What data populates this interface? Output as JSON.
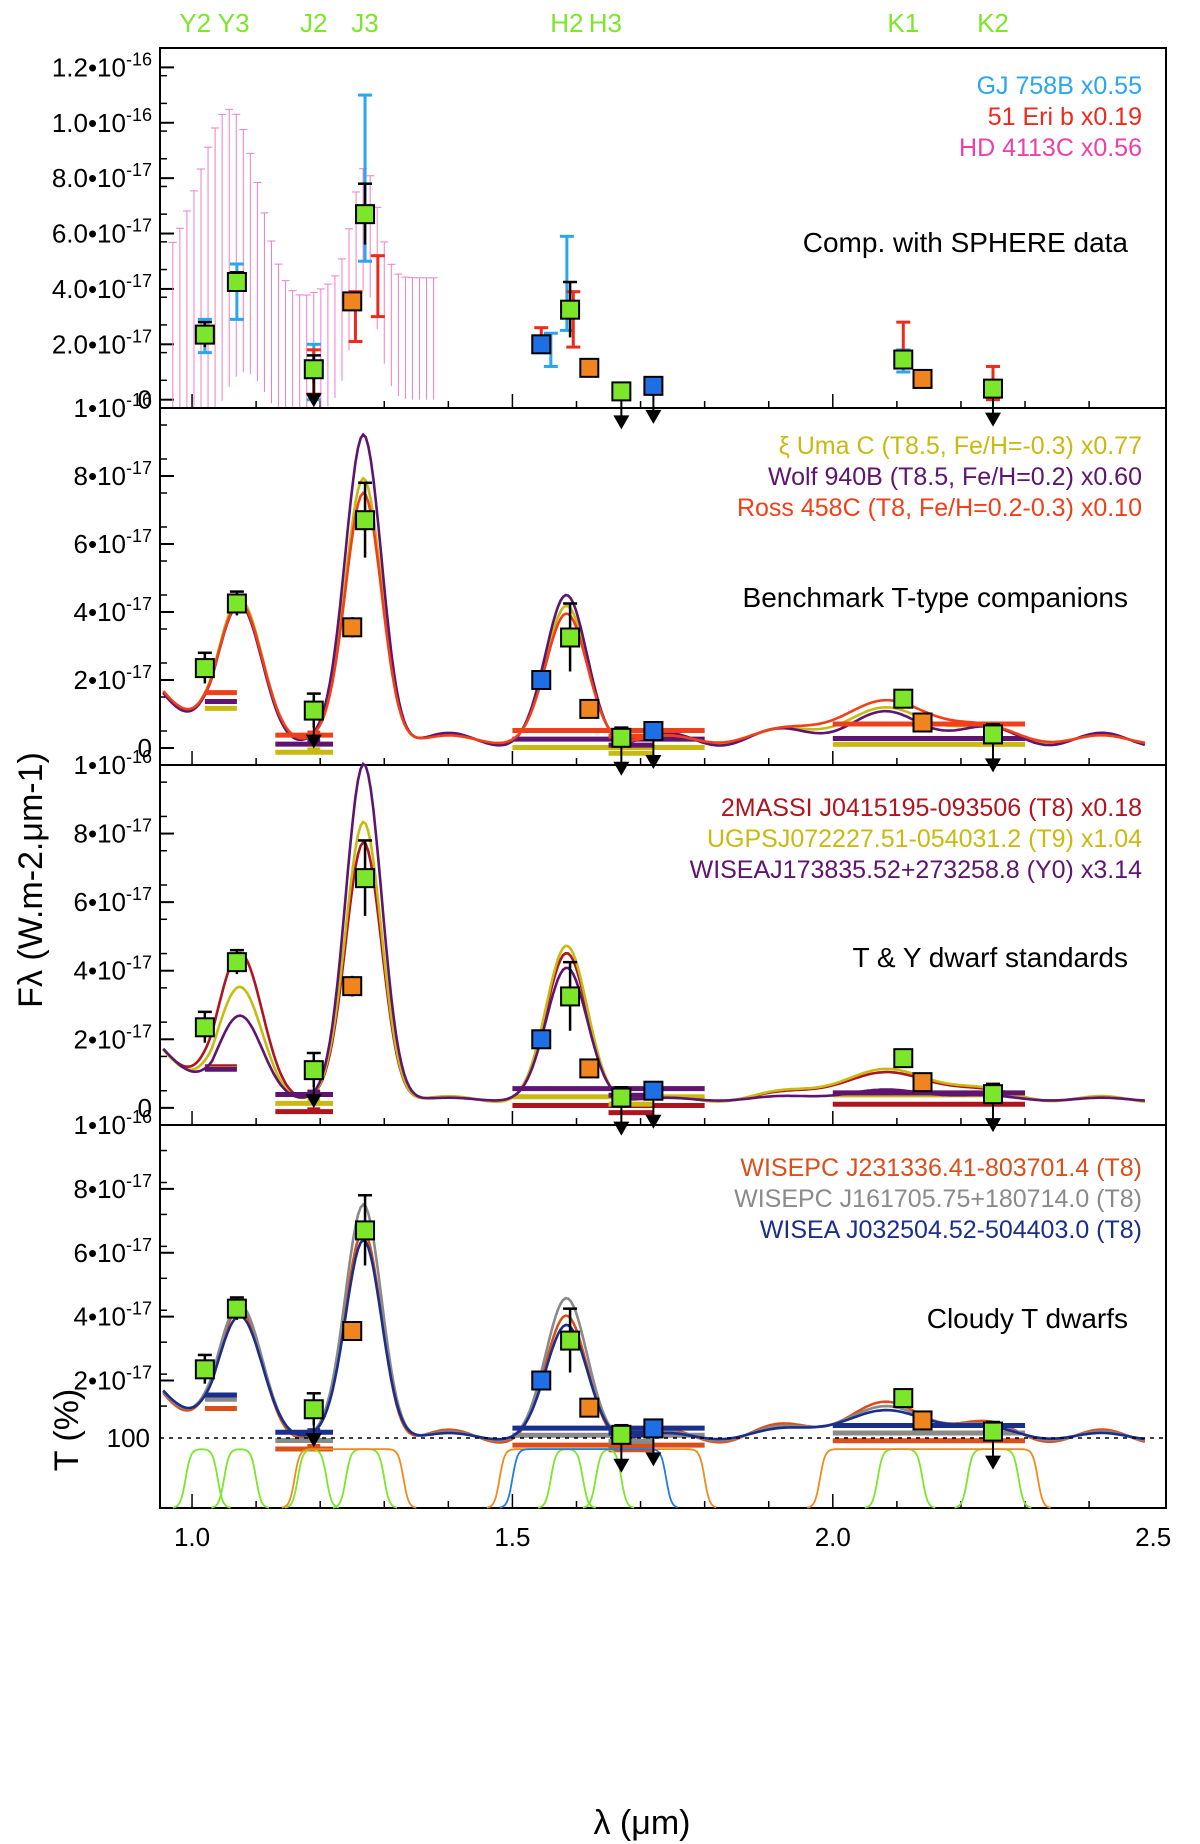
{
  "chart_data": {
    "type": "line",
    "x_axis": {
      "label": "λ (μm)",
      "range": [
        0.95,
        2.52
      ],
      "ticks": [
        "1.0",
        "1.5",
        "2.0",
        "2.5"
      ]
    },
    "y_axis_label": "Fλ (W.m-2.μm-1)",
    "filters": [
      "Y2",
      "Y3",
      "J2",
      "J3",
      "H2",
      "H3",
      "K1",
      "K2"
    ],
    "panels": [
      {
        "title": "Comp. with SPHERE data",
        "ylim": [
          -3e-18,
          1.27e-16
        ],
        "ytick_labels": [
          "0",
          "2.0•10-17",
          "4.0•10-17",
          "6.0•10-17",
          "8.0•10-17",
          "1.0•10-16",
          "1.2•10-16"
        ],
        "legend": [
          {
            "label": "GJ 758B x0.55",
            "color": "#2AA6EE"
          },
          {
            "label": "51 Eri b x0.19",
            "color": "#EE2A1C"
          },
          {
            "label": "HD 4113C x0.56",
            "color": "#EE3FA8"
          }
        ]
      },
      {
        "title": "Benchmark T-type companions",
        "ylim": [
          -5e-18,
          1e-16
        ],
        "ytick_labels": [
          "0",
          "2•10-17",
          "4•10-17",
          "6•10-17",
          "8•10-17",
          "1•10-16"
        ],
        "legend": [
          {
            "label": "ξ Uma C (T8.5, Fe/H=-0.3) x0.77",
            "color": "#C9BA12"
          },
          {
            "label": "Wolf 940B (T8.5, Fe/H=0.2) x0.60",
            "color": "#5E1470"
          },
          {
            "label": "Ross 458C (T8, Fe/H=0.2-0.3) x0.10",
            "color": "#F0401A"
          }
        ]
      },
      {
        "title": "T & Y dwarf standards",
        "ylim": [
          -5e-18,
          1e-16
        ],
        "ytick_labels": [
          "0",
          "2•10-17",
          "4•10-17",
          "6•10-17",
          "8•10-17",
          "1•10-16"
        ],
        "legend": [
          {
            "label": "2MASSI J0415195-093506 (T8) x0.18",
            "color": "#B0141E"
          },
          {
            "label": "UGPSJ072227.51-054031.2 (T9) x1.04",
            "color": "#C9BA12"
          },
          {
            "label": "WISEAJ173835.52+273258.8 (Y0) x3.14",
            "color": "#5E1470"
          }
        ]
      },
      {
        "title": "Cloudy T dwarfs",
        "ylim": [
          2e-18,
          1e-16
        ],
        "ytick_labels": [
          "2•10-17",
          "4•10-17",
          "6•10-17",
          "8•10-17",
          "1•10-16"
        ],
        "transmission_label": "T (%)",
        "transmission_tick": "100",
        "legend": [
          {
            "label": "WISEPC J231336.41-803701.4 (T8)",
            "color": "#D9501A"
          },
          {
            "label": "WISEPC J161705.75+180714.0 (T8)",
            "color": "#8A8A8A"
          },
          {
            "label": "WISEA J032504.52-504403.0 (T8)",
            "color": "#1A2E8C"
          }
        ]
      }
    ],
    "object_photometry_ifs": [
      {
        "wl": 1.02,
        "flux": 2.35e-17,
        "err": 4.5e-18
      },
      {
        "wl": 1.07,
        "flux": 4.25e-17,
        "err": 3.5e-18
      },
      {
        "wl": 1.19,
        "flux": 1.1e-17,
        "err": 5e-18,
        "upper_limit": true
      },
      {
        "wl": 1.27,
        "flux": 6.7e-17,
        "err": 1.1e-17
      },
      {
        "wl": 1.59,
        "flux": 3.25e-17,
        "err": 1e-17
      },
      {
        "wl": 1.67,
        "flux": 3e-18,
        "err": 3e-18,
        "upper_limit": true
      },
      {
        "wl": 2.11,
        "flux": 1.45e-17,
        "err": 2e-18
      },
      {
        "wl": 2.25,
        "flux": 4e-18,
        "err": 3e-18,
        "upper_limit": true
      }
    ],
    "object_photometry_irdis": [
      {
        "wl": 1.25,
        "flux": 3.55e-17,
        "err": 3e-18
      },
      {
        "wl": 1.62,
        "flux": 1.15e-17,
        "err": 1.5e-18
      },
      {
        "wl": 2.14,
        "flux": 7.5e-18,
        "err": 1e-18
      }
    ],
    "object_photometry_other": [
      {
        "wl": 1.545,
        "flux": 2e-17
      },
      {
        "wl": 1.72,
        "flux": 5e-18,
        "upper_limit": true
      }
    ]
  }
}
